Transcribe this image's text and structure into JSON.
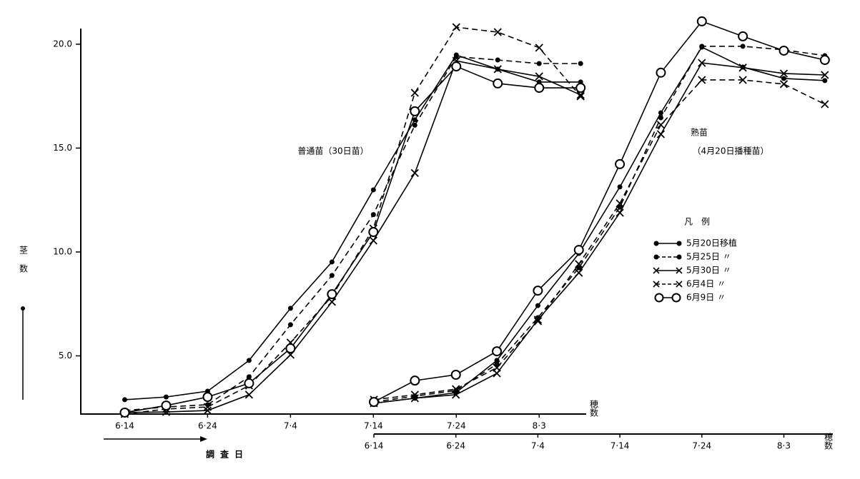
{
  "chart_data": [
    {
      "type": "line",
      "annotation": "普通苗（30日苗）",
      "y_label": "茎数",
      "x_label": "調査日",
      "end_label": "穂数",
      "legend_title": "凡　例",
      "ylim": [
        2.2,
        21.2
      ],
      "yticks": [
        {
          "value": 5,
          "label": "5.0"
        },
        {
          "value": 10,
          "label": "10.0"
        },
        {
          "value": 15,
          "label": "15.0"
        },
        {
          "value": 20,
          "label": "20.0"
        }
      ],
      "xlim": [
        -5.3,
        55.5
      ],
      "xticks": [
        {
          "value": 0,
          "label": "6·14"
        },
        {
          "value": 10,
          "label": "6·24"
        },
        {
          "value": 20,
          "label": "7·4"
        },
        {
          "value": 30,
          "label": "7·14"
        },
        {
          "value": 40,
          "label": "7·24"
        },
        {
          "value": 50,
          "label": "8·3"
        }
      ],
      "x": [
        0,
        5,
        10,
        15,
        20,
        25,
        30,
        35,
        40,
        45,
        50,
        55
      ],
      "series": [
        {
          "name": "5月20日移植",
          "color": "#000000",
          "dash": false,
          "marker": "dot",
          "values": [
            2.89,
            3.02,
            3.3,
            4.78,
            7.29,
            9.52,
            12.99,
            16.36,
            19.48,
            18.8,
            18.18,
            18.18
          ]
        },
        {
          "name": "5月25日 〃",
          "color": "#000000",
          "dash": true,
          "marker": "dot",
          "values": [
            2.37,
            2.54,
            2.65,
            3.99,
            6.5,
            8.87,
            11.8,
            16.1,
            19.4,
            19.24,
            19.07,
            19.07
          ]
        },
        {
          "name": "5月30日 〃",
          "color": "#000000",
          "dash": false,
          "marker": "x",
          "values": [
            2.27,
            2.3,
            2.37,
            3.13,
            5.05,
            7.6,
            10.55,
            13.8,
            19.2,
            18.8,
            18.45,
            17.56
          ]
        },
        {
          "name": "6月4日 〃",
          "color": "#000000",
          "dash": true,
          "marker": "x",
          "values": [
            2.2,
            2.44,
            2.54,
            3.57,
            5.64,
            7.87,
            11.13,
            17.66,
            20.82,
            20.58,
            19.83,
            17.49
          ]
        },
        {
          "name": "6月9日 〃",
          "color": "#000000",
          "dash": false,
          "marker": "circle",
          "values": [
            2.27,
            2.61,
            3.02,
            3.68,
            5.36,
            7.97,
            10.96,
            16.77,
            18.93,
            18.11,
            17.9,
            17.9
          ]
        }
      ]
    },
    {
      "type": "line",
      "annotation": "熟苗",
      "subannotation": "（4月20日播種苗）",
      "end_label": "穂数",
      "ylim": [
        2.2,
        21.2
      ],
      "xlim": [
        0,
        55.8
      ],
      "xticks": [
        {
          "value": 0,
          "label": "6·14"
        },
        {
          "value": 10,
          "label": "6·24"
        },
        {
          "value": 20,
          "label": "7·4"
        },
        {
          "value": 30,
          "label": "7·14"
        },
        {
          "value": 40,
          "label": "7·24"
        },
        {
          "value": 50,
          "label": "8·3"
        }
      ],
      "x": [
        0,
        5,
        10,
        15,
        20,
        25,
        30,
        35,
        40,
        45,
        50,
        55
      ],
      "series": [
        {
          "name": "5月20日移植",
          "color": "#000000",
          "dash": false,
          "marker": "dot",
          "values": [
            2.72,
            2.96,
            3.23,
            4.78,
            7.42,
            9.93,
            13.13,
            16.7,
            19.86,
            18.9,
            18.35,
            18.25
          ]
        },
        {
          "name": "5月25日 〃",
          "color": "#000000",
          "dash": true,
          "marker": "dot",
          "values": [
            2.78,
            3.06,
            3.33,
            4.6,
            6.84,
            9.24,
            12.16,
            16.46,
            19.9,
            19.9,
            19.73,
            19.45
          ]
        },
        {
          "name": "5月30日 〃",
          "color": "#000000",
          "dash": false,
          "marker": "x",
          "values": [
            2.72,
            2.96,
            3.13,
            4.16,
            6.74,
            9.0,
            11.89,
            15.67,
            19.1,
            18.87,
            18.59,
            18.52
          ]
        },
        {
          "name": "6月4日 〃",
          "color": "#000000",
          "dash": true,
          "marker": "x",
          "values": [
            2.89,
            3.13,
            3.4,
            4.43,
            6.67,
            9.42,
            12.34,
            16.12,
            18.28,
            18.28,
            18.08,
            17.11
          ]
        },
        {
          "name": "6月9日 〃",
          "color": "#000000",
          "dash": false,
          "marker": "circle",
          "values": [
            2.78,
            3.81,
            4.09,
            5.22,
            8.14,
            10.1,
            14.23,
            18.63,
            21.1,
            20.38,
            19.69,
            19.24
          ]
        }
      ]
    }
  ]
}
